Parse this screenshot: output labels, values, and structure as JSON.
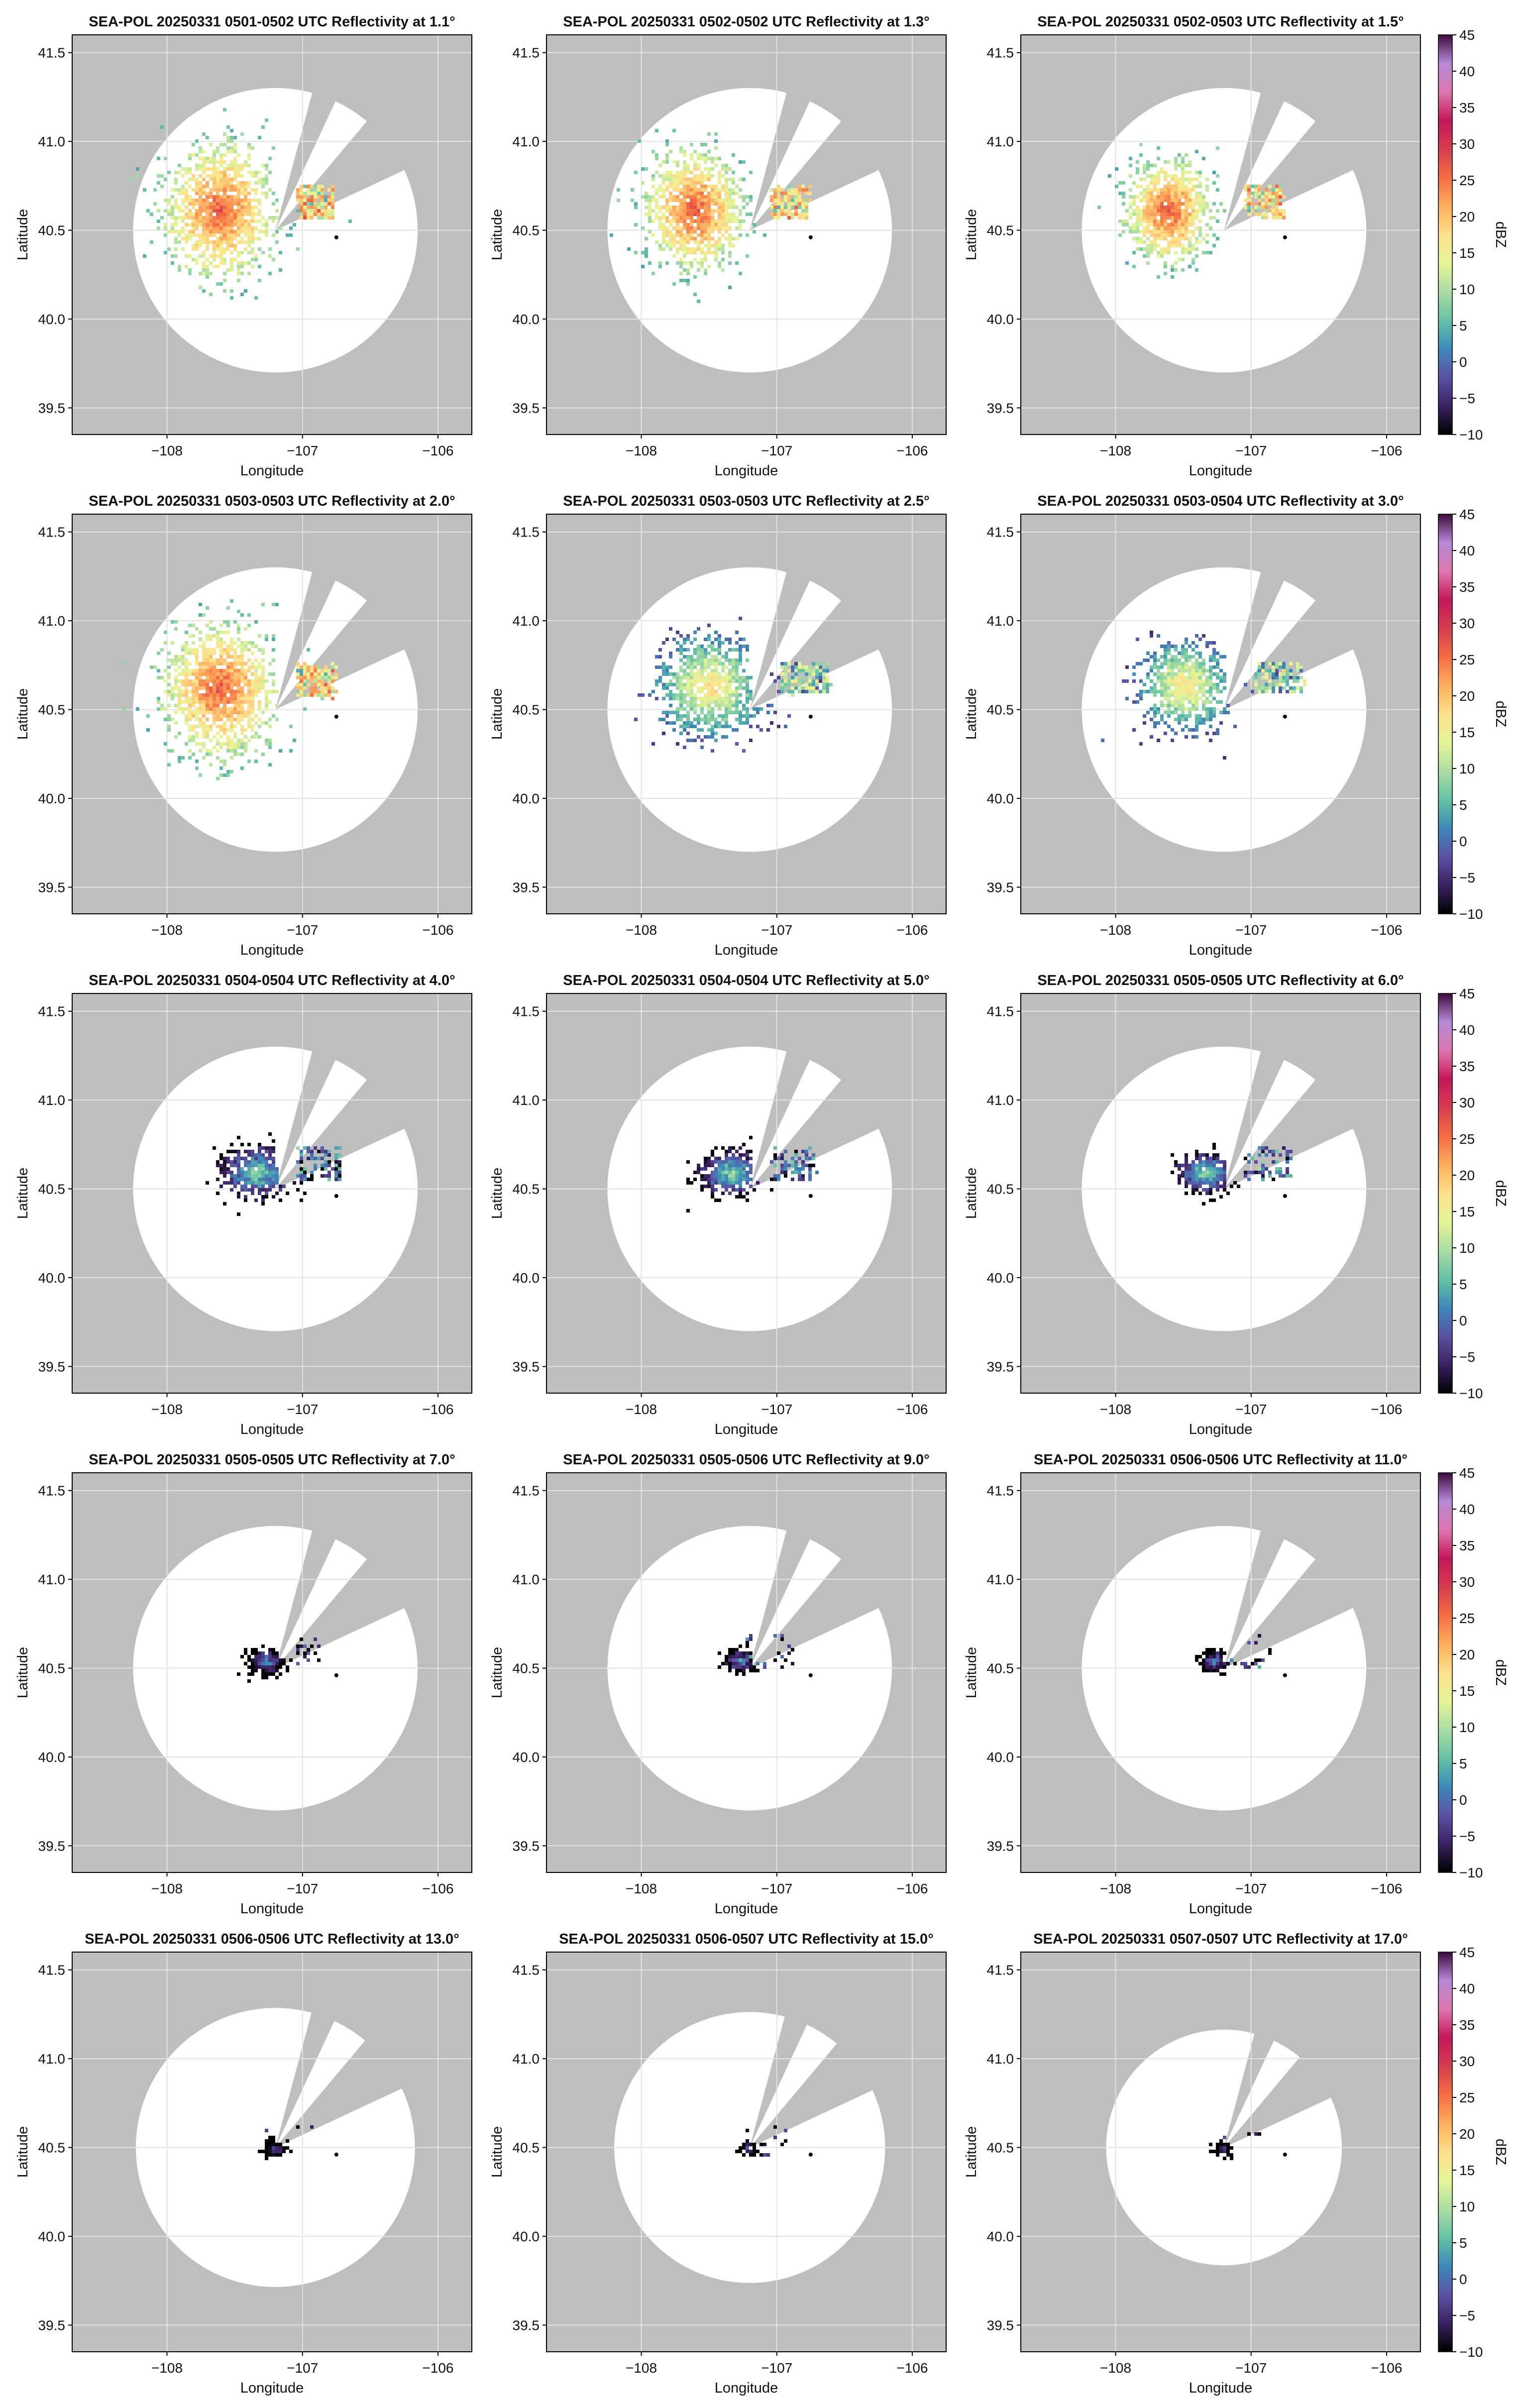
{
  "chart_data": [
    {
      "type": "heatmap",
      "title": "SEA-POL 20250331 0501-0502 UTC Reflectivity at 1.1°",
      "stage": 0
    },
    {
      "type": "heatmap",
      "title": "SEA-POL 20250331 0502-0502 UTC Reflectivity at 1.3°",
      "stage": 1
    },
    {
      "type": "heatmap",
      "title": "SEA-POL 20250331 0502-0503 UTC Reflectivity at 1.5°",
      "stage": 2
    },
    {
      "type": "heatmap",
      "title": "SEA-POL 20250331 0503-0503 UTC Reflectivity at 2.0°",
      "stage": 3
    },
    {
      "type": "heatmap",
      "title": "SEA-POL 20250331 0503-0503 UTC Reflectivity at 2.5°",
      "stage": 4
    },
    {
      "type": "heatmap",
      "title": "SEA-POL 20250331 0503-0504 UTC Reflectivity at 3.0°",
      "stage": 5
    },
    {
      "type": "heatmap",
      "title": "SEA-POL 20250331 0504-0504 UTC Reflectivity at 4.0°",
      "stage": 6
    },
    {
      "type": "heatmap",
      "title": "SEA-POL 20250331 0504-0504 UTC Reflectivity at 5.0°",
      "stage": 7
    },
    {
      "type": "heatmap",
      "title": "SEA-POL 20250331 0505-0505 UTC Reflectivity at 6.0°",
      "stage": 8
    },
    {
      "type": "heatmap",
      "title": "SEA-POL 20250331 0505-0505 UTC Reflectivity at 7.0°",
      "stage": 9
    },
    {
      "type": "heatmap",
      "title": "SEA-POL 20250331 0505-0506 UTC Reflectivity at 9.0°",
      "stage": 10
    },
    {
      "type": "heatmap",
      "title": "SEA-POL 20250331 0506-0506 UTC Reflectivity at 11.0°",
      "stage": 11
    },
    {
      "type": "heatmap",
      "title": "SEA-POL 20250331 0506-0506 UTC Reflectivity at 13.0°",
      "stage": 12
    },
    {
      "type": "heatmap",
      "title": "SEA-POL 20250331 0506-0507 UTC Reflectivity at 15.0°",
      "stage": 13
    },
    {
      "type": "heatmap",
      "title": "SEA-POL 20250331 0507-0507 UTC Reflectivity at 17.0°",
      "stage": 14
    }
  ],
  "axes": {
    "xlabel": "Longitude",
    "ylabel": "Latitude",
    "xlim": [
      -108.7,
      -105.75
    ],
    "ylim": [
      39.35,
      41.6
    ],
    "xticks": [
      -108,
      -107,
      -106
    ],
    "xtick_labels": [
      "−108",
      "−107",
      "−106"
    ],
    "yticks": [
      39.5,
      40.0,
      40.5,
      41.0,
      41.5
    ],
    "ytick_labels": [
      "39.5",
      "40.0",
      "40.5",
      "41.0",
      "41.5"
    ]
  },
  "radar": {
    "site_lon": -107.2,
    "site_lat": 40.5,
    "coverage_radius_deg": [
      1.05,
      1.05,
      1.05,
      1.05,
      1.05,
      1.05,
      1.05,
      1.05,
      1.05,
      1.05,
      1.05,
      1.05,
      1.03,
      1.0,
      0.87
    ],
    "blocked_sector_1": [
      15,
      25
    ],
    "blocked_sector_2": [
      40,
      65
    ]
  },
  "marker": {
    "lon": -106.75,
    "lat": 40.46
  },
  "colorbar": {
    "label": "dBZ",
    "vmin": -10,
    "vmax": 45,
    "ticks": [
      45,
      40,
      35,
      30,
      25,
      20,
      15,
      10,
      5,
      0,
      -5,
      -10
    ],
    "tick_labels": [
      "45",
      "40",
      "35",
      "30",
      "25",
      "20",
      "15",
      "10",
      "5",
      "0",
      "−5",
      "−10"
    ]
  },
  "colors": {
    "background": "#ffffff",
    "outside_coverage": "#bebebe",
    "grid": "#e3e3e3",
    "colormap": [
      "#000000",
      "#3b2161",
      "#5b52a3",
      "#3e88b8",
      "#66c2a5",
      "#abdda4",
      "#e6f598",
      "#fee08b",
      "#fdae61",
      "#f46d43",
      "#d53e4f",
      "#c2185b",
      "#de77ae",
      "#b589d6",
      "#3f0a3e"
    ]
  }
}
